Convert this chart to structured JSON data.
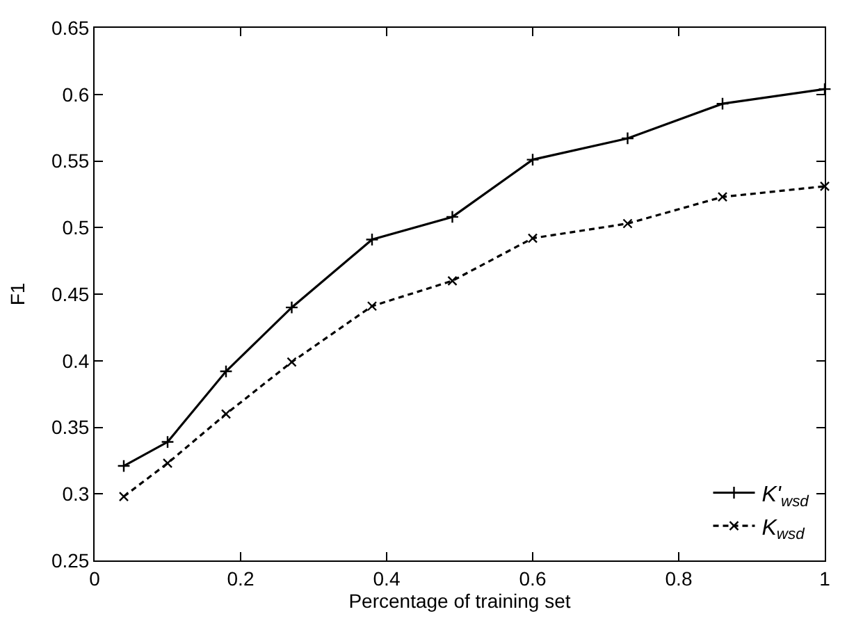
{
  "chart_data": {
    "type": "line",
    "xlabel": "Percentage of training set",
    "ylabel": "F1",
    "x": [
      0.04,
      0.1,
      0.18,
      0.27,
      0.38,
      0.49,
      0.6,
      0.73,
      0.86,
      1.0
    ],
    "series": [
      {
        "name": "K'$_{wsd}$",
        "color": "#000000",
        "marker": "cross",
        "line_style": "solid",
        "values": [
          0.321,
          0.339,
          0.392,
          0.44,
          0.491,
          0.508,
          0.551,
          0.567,
          0.593,
          0.604
        ]
      },
      {
        "name": "K$_{wsd}$",
        "color": "#000000",
        "marker": "x",
        "line_style": "dashed",
        "values": [
          0.298,
          0.323,
          0.36,
          0.399,
          0.441,
          0.46,
          0.492,
          0.503,
          0.523,
          0.531
        ]
      }
    ],
    "xlim": [
      0,
      1
    ],
    "xticks": [
      0,
      0.2,
      0.4,
      0.6,
      0.8,
      1
    ],
    "ylim": [
      0.25,
      0.65
    ],
    "yticks": [
      0.25,
      0.3,
      0.35,
      0.4,
      0.45,
      0.5,
      0.55,
      0.6,
      0.65
    ],
    "legend": "bottom right"
  }
}
